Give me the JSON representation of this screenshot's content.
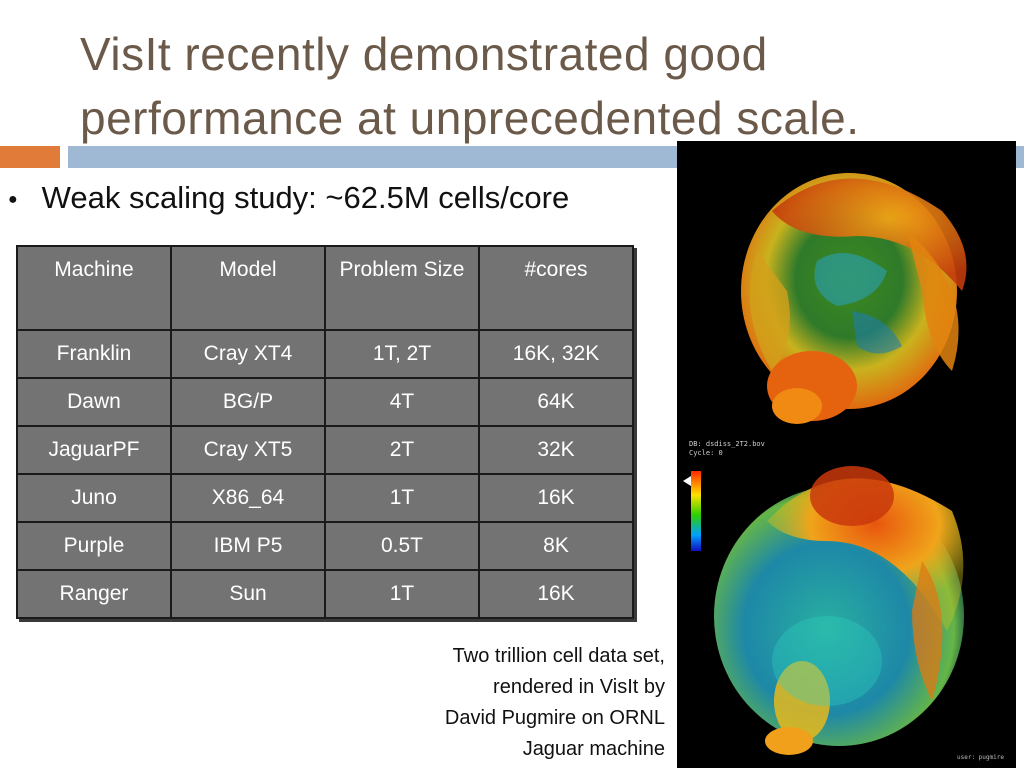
{
  "slide": {
    "title": "VisIt recently demonstrated good performance at unprecedented scale.",
    "bullet": "Weak scaling study: ~62.5M cells/core",
    "colors": {
      "title": "#6b5a4a",
      "accent_orange": "#e07b39",
      "accent_blue": "#9fb9d4",
      "table_bg": "#737373"
    }
  },
  "table": {
    "headers": [
      "Machine",
      "Model",
      "Problem Size",
      "#cores"
    ],
    "rows": [
      [
        "Franklin",
        "Cray XT4",
        "1T, 2T",
        "16K, 32K"
      ],
      [
        "Dawn",
        "BG/P",
        "4T",
        "64K"
      ],
      [
        "JaguarPF",
        "Cray XT5",
        "2T",
        "32K"
      ],
      [
        "Juno",
        "X86_64",
        "1T",
        "16K"
      ],
      [
        "Purple",
        "IBM P5",
        "0.5T",
        "8K"
      ],
      [
        "Ranger",
        "Sun",
        "1T",
        "16K"
      ]
    ]
  },
  "render": {
    "description_icon": "volume-rendering-image",
    "legend_title": "DB: dsdiss_2T2.bov",
    "cycle": "Cycle: 0",
    "user": "user: pugmire"
  },
  "caption": {
    "lines": [
      "Two trillion cell data set,",
      "rendered in VisIt by",
      "David Pugmire on ORNL",
      "Jaguar machine"
    ]
  }
}
